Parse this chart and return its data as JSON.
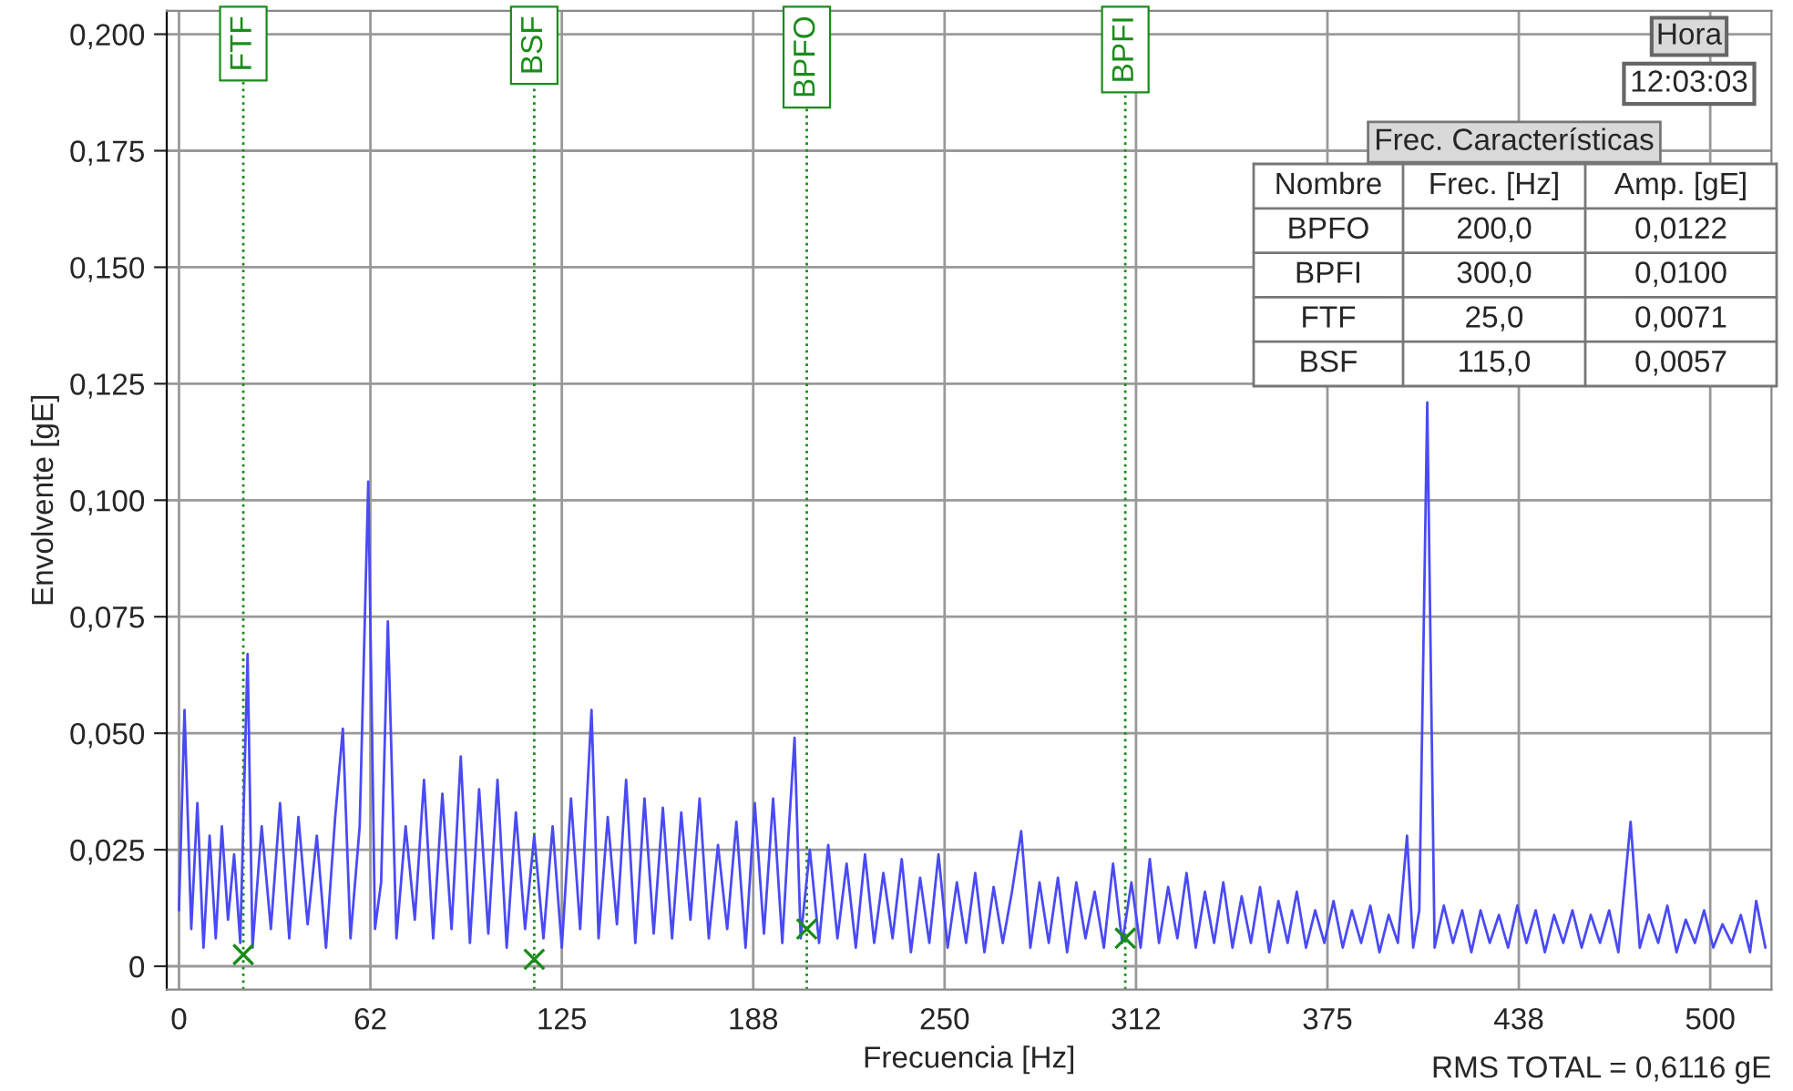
{
  "chart_data": {
    "type": "line",
    "xlabel": "Frecuencia [Hz]",
    "ylabel": "Envolvente [gE]",
    "xlim": [
      -4,
      520
    ],
    "ylim": [
      -0.005,
      0.205
    ],
    "xticks": [
      0,
      {
        "value": 62.5,
        "label": "62"
      },
      125,
      {
        "value": 187.5,
        "label": "188"
      },
      250,
      {
        "value": 312.5,
        "label": "312"
      },
      375,
      {
        "value": 437.5,
        "label": "438"
      },
      500
    ],
    "yticks": [
      {
        "value": 0,
        "label": "0"
      },
      {
        "value": 0.025,
        "label": "0,025"
      },
      {
        "value": 0.05,
        "label": "0,050"
      },
      {
        "value": 0.075,
        "label": "0,075"
      },
      {
        "value": 0.1,
        "label": "0,100"
      },
      {
        "value": 0.125,
        "label": "0,125"
      },
      {
        "value": 0.15,
        "label": "0,150"
      },
      {
        "value": 0.175,
        "label": "0,175"
      },
      {
        "value": 0.2,
        "label": "0,200"
      }
    ],
    "grid": true,
    "series": [
      {
        "color": "#4a4af5",
        "marker": "none",
        "line_style": "solid",
        "x": [
          0,
          1.8,
          4,
          6,
          8,
          10,
          12,
          14,
          16,
          18,
          20,
          22.4,
          24,
          27,
          30,
          33,
          36,
          39,
          42,
          45,
          48,
          51,
          53.5,
          56,
          59,
          61.8,
          64,
          66,
          68.2,
          71,
          74,
          77,
          80,
          83,
          86,
          89,
          92,
          95,
          98,
          101,
          104,
          107,
          110,
          113,
          116,
          119,
          122,
          125,
          128,
          131,
          134.7,
          137,
          140,
          143,
          146,
          149,
          152,
          155,
          158,
          161,
          164,
          167,
          170,
          173,
          176,
          179,
          182,
          185,
          188,
          191,
          194,
          197,
          199,
          201,
          203,
          206,
          209,
          212,
          215,
          218,
          221,
          224,
          227,
          230,
          233,
          236,
          239,
          242,
          245,
          248,
          251,
          254,
          257,
          260,
          263,
          266,
          269,
          272,
          275,
          278,
          281,
          284,
          287,
          290,
          293,
          296,
          299,
          302,
          305,
          308,
          311,
          314,
          317,
          320,
          323,
          326,
          329,
          332,
          335,
          338,
          341,
          344,
          347,
          350,
          353,
          356,
          359,
          362,
          365,
          368,
          371,
          374,
          377,
          380,
          383,
          386,
          389,
          392,
          395,
          398,
          401,
          403,
          405,
          407.6,
          410,
          413,
          416,
          419,
          422,
          425,
          428,
          431,
          434,
          437,
          440,
          443,
          446,
          449,
          452,
          455,
          458,
          461,
          464,
          467,
          470,
          474,
          477,
          480,
          483,
          486,
          489,
          492,
          495,
          498,
          501,
          504,
          507,
          510,
          513,
          515,
          518
        ],
        "values": [
          0.012,
          0.055,
          0.008,
          0.035,
          0.004,
          0.028,
          0.006,
          0.03,
          0.01,
          0.024,
          0.005,
          0.067,
          0.004,
          0.03,
          0.008,
          0.035,
          0.006,
          0.032,
          0.009,
          0.028,
          0.004,
          0.032,
          0.051,
          0.006,
          0.03,
          0.104,
          0.008,
          0.018,
          0.074,
          0.006,
          0.03,
          0.01,
          0.04,
          0.006,
          0.037,
          0.008,
          0.045,
          0.005,
          0.038,
          0.007,
          0.04,
          0.004,
          0.033,
          0.008,
          0.028,
          0.006,
          0.03,
          0.004,
          0.036,
          0.008,
          0.055,
          0.006,
          0.032,
          0.009,
          0.04,
          0.005,
          0.036,
          0.007,
          0.034,
          0.006,
          0.033,
          0.01,
          0.036,
          0.006,
          0.026,
          0.008,
          0.031,
          0.004,
          0.035,
          0.007,
          0.036,
          0.005,
          0.028,
          0.049,
          0.006,
          0.025,
          0.005,
          0.026,
          0.006,
          0.022,
          0.004,
          0.024,
          0.005,
          0.02,
          0.006,
          0.023,
          0.003,
          0.019,
          0.005,
          0.024,
          0.004,
          0.018,
          0.005,
          0.02,
          0.003,
          0.017,
          0.005,
          0.016,
          0.029,
          0.004,
          0.018,
          0.005,
          0.019,
          0.003,
          0.018,
          0.006,
          0.016,
          0.004,
          0.022,
          0.005,
          0.018,
          0.004,
          0.023,
          0.005,
          0.017,
          0.006,
          0.02,
          0.004,
          0.016,
          0.005,
          0.018,
          0.004,
          0.015,
          0.005,
          0.017,
          0.003,
          0.014,
          0.005,
          0.016,
          0.004,
          0.012,
          0.005,
          0.014,
          0.004,
          0.012,
          0.005,
          0.013,
          0.003,
          0.011,
          0.005,
          0.028,
          0.004,
          0.012,
          0.121,
          0.004,
          0.013,
          0.005,
          0.012,
          0.003,
          0.012,
          0.005,
          0.011,
          0.004,
          0.013,
          0.005,
          0.012,
          0.003,
          0.011,
          0.005,
          0.012,
          0.004,
          0.011,
          0.005,
          0.012,
          0.003,
          0.031,
          0.004,
          0.011,
          0.005,
          0.013,
          0.003,
          0.01,
          0.005,
          0.012,
          0.004,
          0.009,
          0.005,
          0.011,
          0.003,
          0.014,
          0.004
        ]
      },
      {
        "type": "scatter",
        "color": "#1a8c1a",
        "marker": "cross",
        "x": [
          21,
          116,
          205,
          309
        ],
        "values": [
          0.0025,
          0.0015,
          0.008,
          0.006
        ]
      }
    ],
    "ref_lines": [
      {
        "axis": "x",
        "value": 21,
        "label": "FTF",
        "color": "#1a8c1a",
        "line_style": "dotted"
      },
      {
        "axis": "x",
        "value": 116,
        "label": "BSF",
        "color": "#1a8c1a",
        "line_style": "dotted"
      },
      {
        "axis": "x",
        "value": 205,
        "label": "BPFO",
        "color": "#1a8c1a",
        "line_style": "dotted"
      },
      {
        "axis": "x",
        "value": 309,
        "label": "BPFI",
        "color": "#1a8c1a",
        "line_style": "dotted"
      }
    ],
    "annotations": [
      "Hora",
      "12:03:03",
      "Frec. Características",
      "Nombre",
      "Frec. [Hz]",
      "Amp. [gE]",
      "BPFO",
      "200,0",
      "0,0122",
      "BPFI",
      "300,0",
      "0,0100",
      "FTF",
      "25,0",
      "0,0071",
      "BSF",
      "115,0",
      "0,0057",
      "RMS TOTAL = 0,6116 gE"
    ]
  }
}
